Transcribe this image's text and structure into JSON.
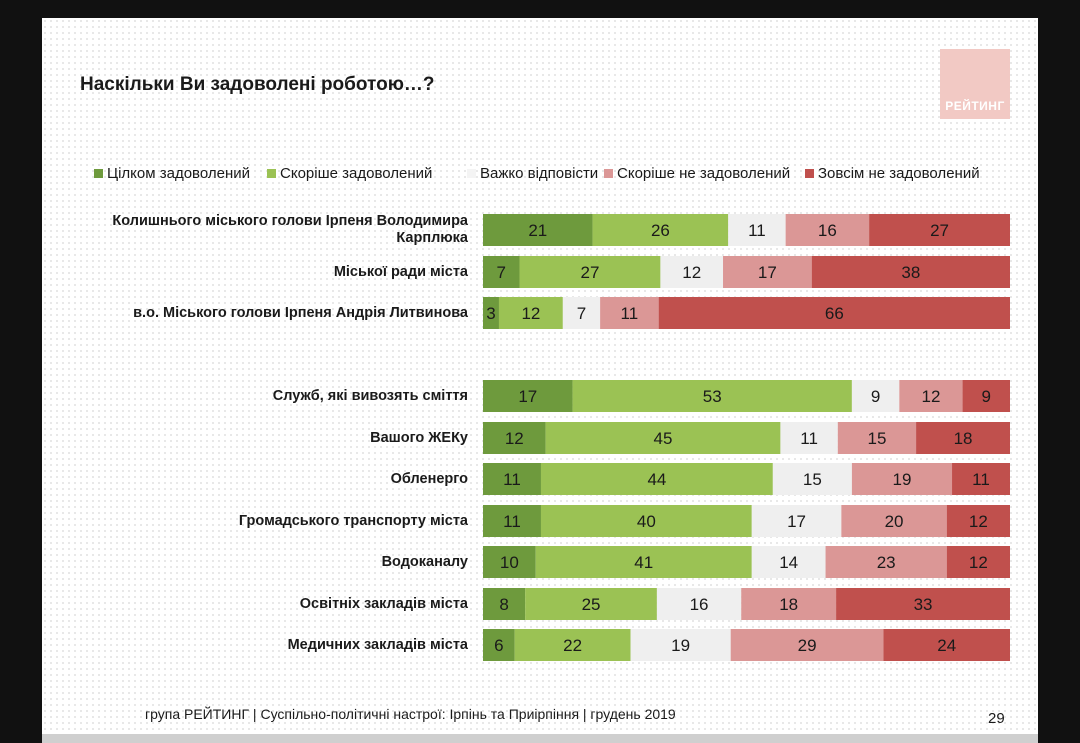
{
  "title": "Наскільки Ви задоволені роботою…?",
  "logo_text": "РЕЙТИНГ",
  "footer": "група РЕЙТИНГ  | Суспільно-політичні настрої: Ірпінь та Приірпіння |  грудень 2019",
  "page_number": "29",
  "colors": {
    "slide_bg": "#ffffff",
    "logo_bg": "#f2c9c4"
  },
  "chart_data": {
    "type": "bar",
    "orientation": "horizontal-stacked-100",
    "legend_position": "top",
    "xlim": [
      0,
      100
    ],
    "grid": false,
    "series": [
      {
        "name": "Цілком задоволений",
        "color": "#6e9a3d"
      },
      {
        "name": "Скоріше задоволений",
        "color": "#9bc254"
      },
      {
        "name": "Важко відповісти",
        "color": "#efefef"
      },
      {
        "name": "Скоріше не задоволений",
        "color": "#db9796"
      },
      {
        "name": "Зовсім не задоволений",
        "color": "#c0504d"
      }
    ],
    "categories": [
      "Колишнього міського голови Ірпеня Володимира Карплюка",
      "Міської ради міста",
      "в.о. Міського голови Ірпеня Андрія Литвинова",
      "",
      "Служб, які вивозять сміття",
      "Вашого ЖЕКу",
      "Обленерго",
      "Громадського транспорту міста",
      "Водоканалу",
      "Освітніх закладів міста",
      "Медичних закладів міста"
    ],
    "values": [
      [
        21,
        26,
        11,
        16,
        27
      ],
      [
        7,
        27,
        12,
        17,
        38
      ],
      [
        3,
        12,
        7,
        11,
        66
      ],
      null,
      [
        17,
        53,
        9,
        12,
        9
      ],
      [
        12,
        45,
        11,
        15,
        18
      ],
      [
        11,
        44,
        15,
        19,
        11
      ],
      [
        11,
        40,
        17,
        20,
        12
      ],
      [
        10,
        41,
        14,
        23,
        12
      ],
      [
        8,
        25,
        16,
        18,
        33
      ],
      [
        6,
        22,
        19,
        29,
        24
      ]
    ]
  }
}
